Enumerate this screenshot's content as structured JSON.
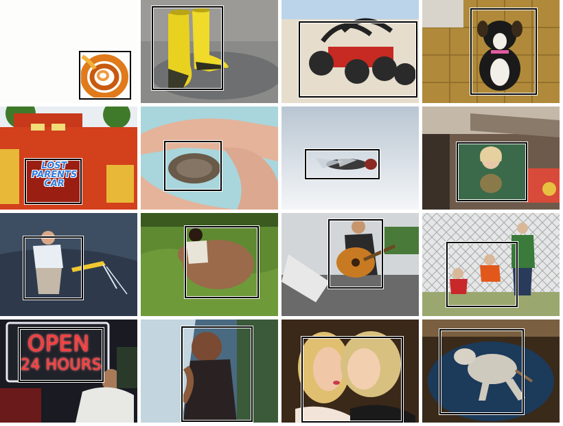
{
  "tiles": [
    {
      "subject": "orange-ribbon-coil"
    },
    {
      "subject": "yellow-rain-boots"
    },
    {
      "subject": "toy-atv-vehicle"
    },
    {
      "subject": "small-dog"
    },
    {
      "subject": "lost-parents-sign",
      "sign_text": [
        "LOST",
        "PARENTS",
        "CAR"
      ]
    },
    {
      "subject": "small-animal-in-hands"
    },
    {
      "subject": "fly-insect"
    },
    {
      "subject": "woman-holding-bird"
    },
    {
      "subject": "boy-with-shovel-in-water"
    },
    {
      "subject": "girl-with-pig"
    },
    {
      "subject": "man-playing-guitar"
    },
    {
      "subject": "kids-by-fence"
    },
    {
      "subject": "open-24-hours-sign",
      "sign_text": [
        "OPEN",
        "24 HOURS"
      ]
    },
    {
      "subject": "boy-in-waterfall"
    },
    {
      "subject": "two-women-kissing-face"
    },
    {
      "subject": "toy-animal-on-blanket"
    }
  ]
}
